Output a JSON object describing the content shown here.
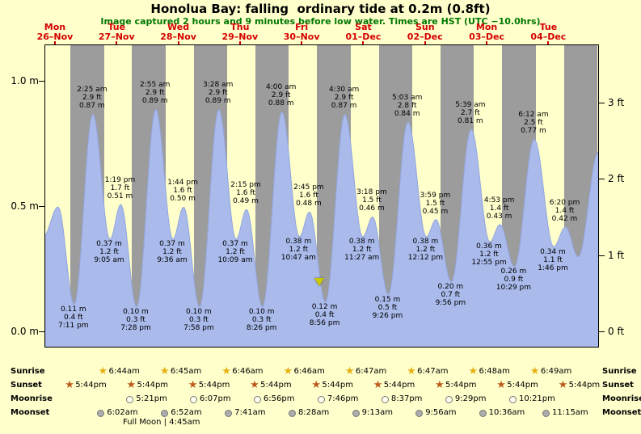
{
  "title": "Honolua Bay: falling  ordinary tide at 0.2m (0.8ft)",
  "subtitle": "Image captured 2 hours and 9 minutes before low water. Times are HST (UTC −10.0hrs)",
  "colors": {
    "page_bg": "#FFFFCC",
    "night_band": "#9C9C9C",
    "tide_fill": "#A9BAEB",
    "tide_stroke": "#93A6DE",
    "day_label_red": "#D40000",
    "subtitle_green": "#007700",
    "sunrise_star": "#E6B012",
    "sunset_star": "#BC5A1C",
    "moonrise_fill": "#FFFFF0",
    "moonset_fill": "#ACACAC",
    "circle_border": "#777777",
    "marker_yellow": "#C9C900"
  },
  "chart_data": {
    "type": "area",
    "ylabel_left": "m",
    "ylabel_right": "ft",
    "ylim_m": [
      -0.065,
      1.145
    ],
    "grid": false,
    "y_axis_left": {
      "ticks": [
        {
          "label": "0.0 m",
          "value": 0.0
        },
        {
          "label": "0.5 m",
          "value": 0.5
        },
        {
          "label": "1.0 m",
          "value": 1.0
        }
      ]
    },
    "y_axis_right": {
      "ticks": [
        {
          "label": "0 ft",
          "value_m": 0.0
        },
        {
          "label": "1 ft",
          "value_m": 0.3048
        },
        {
          "label": "2 ft",
          "value_m": 0.6096
        },
        {
          "label": "3 ft",
          "value_m": 0.9144
        }
      ]
    },
    "days": [
      {
        "name": "Mon",
        "date": "26–Nov"
      },
      {
        "name": "Tue",
        "date": "27–Nov"
      },
      {
        "name": "Wed",
        "date": "28–Nov"
      },
      {
        "name": "Thu",
        "date": "29–Nov"
      },
      {
        "name": "Fri",
        "date": "30–Nov"
      },
      {
        "name": "Sat",
        "date": "01–Dec"
      },
      {
        "name": "Sun",
        "date": "02–Dec"
      },
      {
        "name": "Mon",
        "date": "03–Dec"
      },
      {
        "name": "Tue",
        "date": "04–Dec"
      }
    ],
    "time_range": {
      "t_start": 0.33,
      "t_end": 9.322
    },
    "night": {
      "sunset_frac": 0.7389,
      "sunrise_frac": 0.2806
    },
    "extremes": [
      {
        "t": 0.295,
        "m": 0.38,
        "type": "x"
      },
      {
        "t": 0.538,
        "m": 0.5,
        "type": "x"
      },
      {
        "t": 0.7993,
        "m": 0.11,
        "type": "L",
        "labels": [
          "0.11 m",
          "0.4 ft",
          "7:11 pm"
        ]
      },
      {
        "t": 1.1007,
        "m": 0.87,
        "type": "H",
        "labels": [
          "2:25 am",
          "2.9 ft",
          "0.87 m"
        ]
      },
      {
        "t": 1.3785,
        "m": 0.37,
        "type": "L",
        "labels": [
          "0.37 m",
          "1.2 ft",
          "9:05 am"
        ]
      },
      {
        "t": 1.5549,
        "m": 0.51,
        "type": "H",
        "labels": [
          "1:19 pm",
          "1.7 ft",
          "0.51 m"
        ]
      },
      {
        "t": 1.8111,
        "m": 0.1,
        "type": "L",
        "labels": [
          "0.10 m",
          "0.3 ft",
          "7:28 pm"
        ]
      },
      {
        "t": 2.1215,
        "m": 0.89,
        "type": "H",
        "labels": [
          "2:55 am",
          "2.9 ft",
          "0.89 m"
        ]
      },
      {
        "t": 2.4,
        "m": 0.37,
        "type": "L",
        "labels": [
          "0.37 m",
          "1.2 ft",
          "9:36 am"
        ]
      },
      {
        "t": 2.5722,
        "m": 0.5,
        "type": "H",
        "labels": [
          "1:44 pm",
          "1.6 ft",
          "0.50 m"
        ]
      },
      {
        "t": 2.8319,
        "m": 0.1,
        "type": "L",
        "labels": [
          "0.10 m",
          "0.3 ft",
          "7:58 pm"
        ]
      },
      {
        "t": 3.1444,
        "m": 0.89,
        "type": "H",
        "labels": [
          "3:28 am",
          "2.9 ft",
          "0.89 m"
        ]
      },
      {
        "t": 3.4229,
        "m": 0.37,
        "type": "L",
        "labels": [
          "0.37 m",
          "1.2 ft",
          "10:09 am"
        ]
      },
      {
        "t": 3.5938,
        "m": 0.49,
        "type": "H",
        "labels": [
          "2:15 pm",
          "1.6 ft",
          "0.49 m"
        ]
      },
      {
        "t": 3.8514,
        "m": 0.1,
        "type": "L",
        "labels": [
          "0.10 m",
          "0.3 ft",
          "8:26 pm"
        ]
      },
      {
        "t": 4.1667,
        "m": 0.88,
        "type": "H",
        "labels": [
          "4:00 am",
          "2.9 ft",
          "0.88 m"
        ]
      },
      {
        "t": 4.4493,
        "m": 0.38,
        "type": "L",
        "labels": [
          "0.38 m",
          "1.2 ft",
          "10:47 am"
        ]
      },
      {
        "t": 4.6146,
        "m": 0.48,
        "type": "H",
        "labels": [
          "2:45 pm",
          "1.6 ft",
          "0.48 m"
        ]
      },
      {
        "t": 4.8722,
        "m": 0.12,
        "type": "L",
        "labels": [
          "0.12 m",
          "0.4 ft",
          "8:56 pm"
        ]
      },
      {
        "t": 5.1875,
        "m": 0.87,
        "type": "H",
        "labels": [
          "4:30 am",
          "2.9 ft",
          "0.87 m"
        ]
      },
      {
        "t": 5.4771,
        "m": 0.38,
        "type": "L",
        "labels": [
          "0.38 m",
          "1.2 ft",
          "11:27 am"
        ]
      },
      {
        "t": 5.6375,
        "m": 0.46,
        "type": "H",
        "labels": [
          "3:18 pm",
          "1.5 ft",
          "0.46 m"
        ]
      },
      {
        "t": 5.8931,
        "m": 0.15,
        "type": "L",
        "labels": [
          "0.15 m",
          "0.5 ft",
          "9:26 pm"
        ]
      },
      {
        "t": 6.2104,
        "m": 0.84,
        "type": "H",
        "labels": [
          "5:03 am",
          "2.8 ft",
          "0.84 m"
        ]
      },
      {
        "t": 6.5083,
        "m": 0.38,
        "type": "L",
        "labels": [
          "0.38 m",
          "1.2 ft",
          "12:12 pm"
        ]
      },
      {
        "t": 6.666,
        "m": 0.45,
        "type": "H",
        "labels": [
          "3:59 pm",
          "1.5 ft",
          "0.45 m"
        ]
      },
      {
        "t": 6.9139,
        "m": 0.2,
        "type": "L",
        "labels": [
          "0.20 m",
          "0.7 ft",
          "9:56 pm"
        ]
      },
      {
        "t": 7.2354,
        "m": 0.81,
        "type": "H",
        "labels": [
          "5:39 am",
          "2.7 ft",
          "0.81 m"
        ]
      },
      {
        "t": 7.5382,
        "m": 0.36,
        "type": "L",
        "labels": [
          "0.36 m",
          "1.2 ft",
          "12:55 pm"
        ]
      },
      {
        "t": 7.7035,
        "m": 0.43,
        "type": "H",
        "labels": [
          "4:53 pm",
          "1.4 ft",
          "0.43 m"
        ]
      },
      {
        "t": 7.9368,
        "m": 0.26,
        "type": "L",
        "labels": [
          "0.26 m",
          "0.9 ft",
          "10:29 pm"
        ]
      },
      {
        "t": 8.2583,
        "m": 0.77,
        "type": "H",
        "labels": [
          "6:12 am",
          "2.5 ft",
          "0.77 m"
        ]
      },
      {
        "t": 8.5736,
        "m": 0.34,
        "type": "L",
        "labels": [
          "0.34 m",
          "1.1 ft",
          "1:46 pm"
        ]
      },
      {
        "t": 8.7639,
        "m": 0.42,
        "type": "H",
        "labels": [
          "6:20 pm",
          "1.4 ft",
          "0.42 m"
        ]
      },
      {
        "t": 8.97,
        "m": 0.3,
        "type": "x"
      },
      {
        "t": 9.3,
        "m": 0.72,
        "type": "x"
      },
      {
        "t": 9.7,
        "m": 0.35,
        "type": "x"
      }
    ],
    "marker": {
      "t": 4.782
    }
  },
  "astro": {
    "rows": [
      {
        "id": "sunrise",
        "label": "Sunrise",
        "icon": "sunrise-star",
        "entries": [
          {
            "t": 1.2806,
            "time": "6:44am"
          },
          {
            "t": 2.2813,
            "time": "6:45am"
          },
          {
            "t": 3.2819,
            "time": "6:46am"
          },
          {
            "t": 4.2819,
            "time": "6:46am"
          },
          {
            "t": 5.2826,
            "time": "6:47am"
          },
          {
            "t": 6.2826,
            "time": "6:47am"
          },
          {
            "t": 7.2833,
            "time": "6:48am"
          },
          {
            "t": 8.284,
            "time": "6:49am"
          }
        ]
      },
      {
        "id": "sunset",
        "label": "Sunset",
        "icon": "sunset-star",
        "entries": [
          {
            "t": 0.7389,
            "time": "5:44pm"
          },
          {
            "t": 1.7389,
            "time": "5:44pm"
          },
          {
            "t": 2.7389,
            "time": "5:44pm"
          },
          {
            "t": 3.7389,
            "time": "5:44pm"
          },
          {
            "t": 4.7389,
            "time": "5:44pm"
          },
          {
            "t": 5.7389,
            "time": "5:44pm"
          },
          {
            "t": 6.7389,
            "time": "5:44pm"
          },
          {
            "t": 7.7389,
            "time": "5:44pm"
          },
          {
            "t": 8.7389,
            "time": "5:44pm"
          }
        ]
      },
      {
        "id": "moonrise",
        "label": "Moonrise",
        "icon": "moonrise-circle",
        "entries": [
          {
            "t": 1.7229,
            "time": "5:21pm"
          },
          {
            "t": 2.7549,
            "time": "6:07pm"
          },
          {
            "t": 3.7889,
            "time": "6:56pm"
          },
          {
            "t": 4.8236,
            "time": "7:46pm"
          },
          {
            "t": 5.859,
            "time": "8:37pm"
          },
          {
            "t": 6.8951,
            "time": "9:29pm"
          },
          {
            "t": 7.9313,
            "time": "10:21pm"
          }
        ]
      },
      {
        "id": "moonset",
        "label": "Moonset",
        "icon": "moonset-circle",
        "entries": [
          {
            "t": 1.2514,
            "time": "6:02am"
          },
          {
            "t": 2.2861,
            "time": "6:52am"
          },
          {
            "t": 3.3201,
            "time": "7:41am"
          },
          {
            "t": 4.3528,
            "time": "8:28am"
          },
          {
            "t": 5.384,
            "time": "9:13am"
          },
          {
            "t": 6.4139,
            "time": "9:56am"
          },
          {
            "t": 7.4417,
            "time": "10:36am"
          },
          {
            "t": 8.4688,
            "time": "11:15am"
          }
        ]
      }
    ],
    "moon_note": "Full Moon | 4:45am"
  }
}
